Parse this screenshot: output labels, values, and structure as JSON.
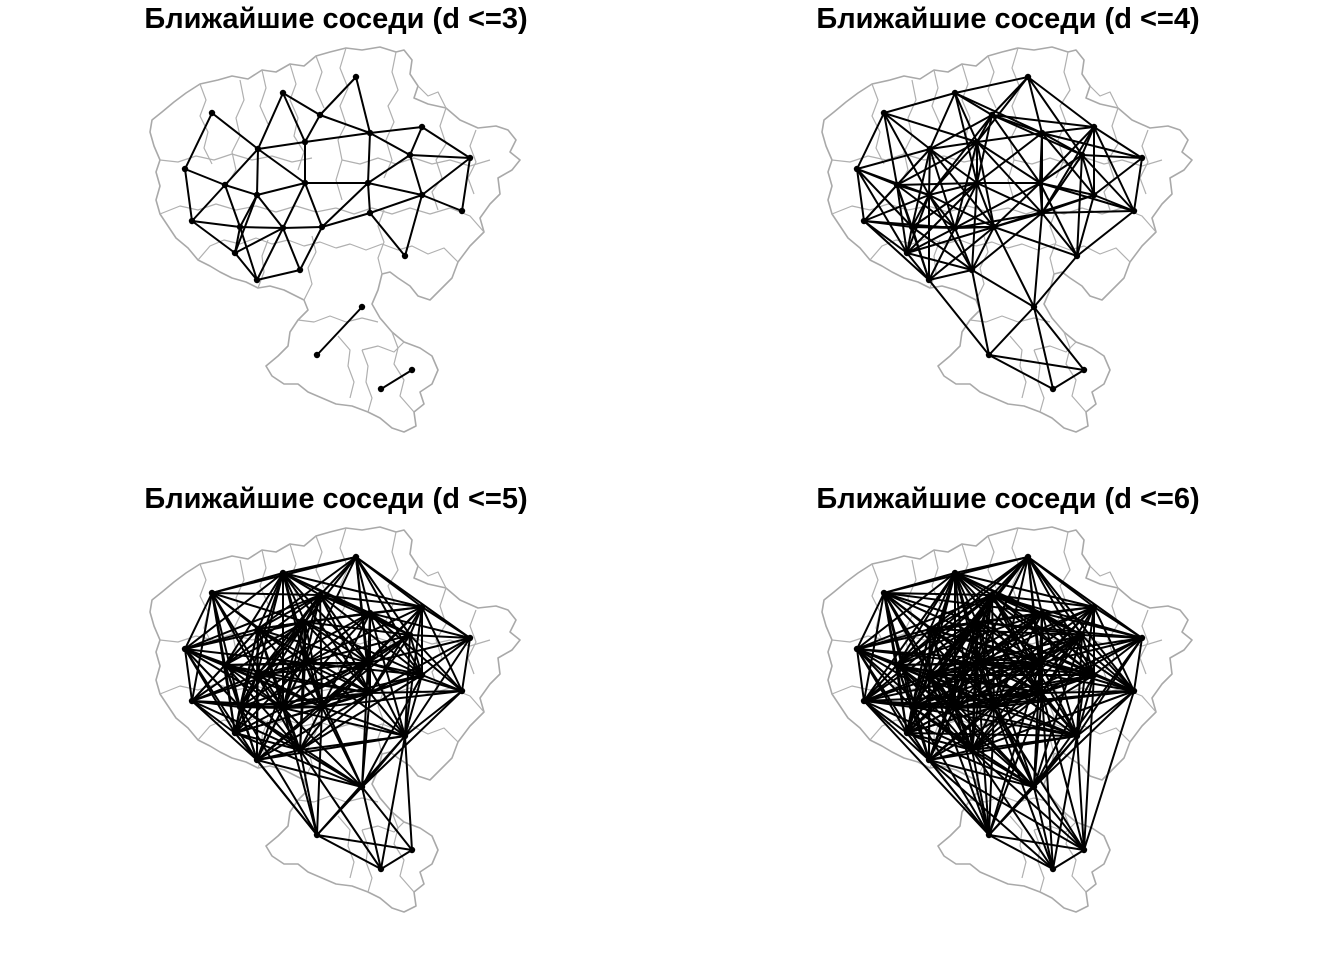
{
  "panels": [
    {
      "title": "Ближайшие соседи (d <=3)",
      "d": 3
    },
    {
      "title": "Ближайшие соседи (d <=4)",
      "d": 4
    },
    {
      "title": "Ближайшие соседи (d <=5)",
      "d": 5
    },
    {
      "title": "Ближайшие соседи (d <=6)",
      "d": 6
    }
  ],
  "colors": {
    "background": "#ffffff",
    "boundary": "#a9a9a9",
    "edge": "#000000",
    "node": "#000000"
  }
}
